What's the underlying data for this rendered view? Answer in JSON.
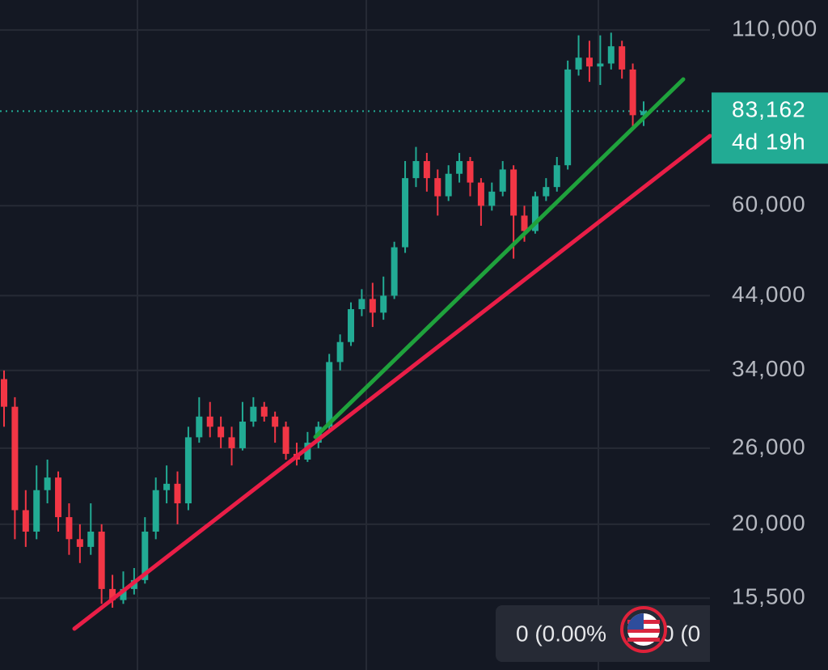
{
  "chart_data": {
    "type": "candlestick",
    "log_scale": true,
    "grid": true,
    "ylim": [
      12100,
      122000
    ],
    "yticks": [
      {
        "value": 110000,
        "label": "110,000"
      },
      {
        "value": 60000,
        "label": "60,000"
      },
      {
        "value": 44000,
        "label": "44,000"
      },
      {
        "value": 34000,
        "label": "34,000"
      },
      {
        "value": 26000,
        "label": "26,000"
      },
      {
        "value": 20000,
        "label": "20,000"
      },
      {
        "value": 15500,
        "label": "15,500"
      }
    ],
    "up_color": "#22ab94",
    "down_color": "#f23645",
    "last_price": {
      "value": 83162,
      "label": "83,162"
    },
    "countdown": "4d 19h",
    "status": [
      "0 (0.00%",
      "0 (0"
    ],
    "ohlc": [
      [
        33000,
        34000,
        28000,
        30000
      ],
      [
        30000,
        31000,
        19000,
        21000
      ],
      [
        21000,
        22500,
        18500,
        19500
      ],
      [
        19500,
        24500,
        19000,
        22500
      ],
      [
        22500,
        25000,
        21500,
        23500
      ],
      [
        23500,
        24000,
        19500,
        20500
      ],
      [
        20500,
        21500,
        18000,
        19000
      ],
      [
        19000,
        20000,
        17500,
        18500
      ],
      [
        18500,
        21500,
        18000,
        19500
      ],
      [
        19500,
        20000,
        15200,
        16000
      ],
      [
        16000,
        16800,
        15000,
        15400
      ],
      [
        15400,
        17000,
        15200,
        16000
      ],
      [
        16000,
        17200,
        15700,
        16500
      ],
      [
        16500,
        20500,
        16300,
        19500
      ],
      [
        19500,
        23500,
        19000,
        22500
      ],
      [
        22500,
        24500,
        21500,
        23000
      ],
      [
        23000,
        24000,
        20000,
        21500
      ],
      [
        21500,
        28000,
        21000,
        27000
      ],
      [
        27000,
        31000,
        26500,
        29000
      ],
      [
        29000,
        30500,
        27000,
        28000
      ],
      [
        28000,
        29000,
        26000,
        27000
      ],
      [
        27000,
        28000,
        24500,
        26000
      ],
      [
        26000,
        30500,
        25800,
        28500
      ],
      [
        28500,
        31000,
        28000,
        30000
      ],
      [
        30000,
        30500,
        28500,
        29000
      ],
      [
        29000,
        29500,
        26500,
        28000
      ],
      [
        28000,
        28500,
        25000,
        25500
      ],
      [
        25500,
        26500,
        24500,
        25000
      ],
      [
        25000,
        27500,
        24800,
        26500
      ],
      [
        26500,
        28500,
        26000,
        28000
      ],
      [
        28000,
        36000,
        27500,
        35000
      ],
      [
        35000,
        38500,
        34000,
        37500
      ],
      [
        37500,
        43000,
        37000,
        42000
      ],
      [
        42000,
        45000,
        41000,
        43500
      ],
      [
        43500,
        46000,
        39500,
        41500
      ],
      [
        41500,
        47000,
        40500,
        44000
      ],
      [
        44000,
        53000,
        43500,
        52000
      ],
      [
        52000,
        70000,
        51000,
        66000
      ],
      [
        66000,
        73500,
        64000,
        70000
      ],
      [
        70000,
        72000,
        63000,
        66000
      ],
      [
        66000,
        68000,
        58000,
        62000
      ],
      [
        62000,
        69000,
        61000,
        67000
      ],
      [
        67000,
        72000,
        65000,
        70000
      ],
      [
        70000,
        71000,
        62000,
        65000
      ],
      [
        65000,
        66000,
        56000,
        60000
      ],
      [
        60000,
        65000,
        59000,
        63000
      ],
      [
        63000,
        70000,
        62000,
        68000
      ],
      [
        68000,
        69000,
        50000,
        58000
      ],
      [
        58000,
        60000,
        53000,
        55000
      ],
      [
        55000,
        63000,
        54500,
        62000
      ],
      [
        62000,
        66000,
        61000,
        64000
      ],
      [
        64000,
        71000,
        63000,
        69000
      ],
      [
        69000,
        99000,
        68000,
        96000
      ],
      [
        96000,
        108000,
        94000,
        100000
      ],
      [
        100000,
        106000,
        92000,
        97000
      ],
      [
        97000,
        108000,
        91000,
        98000
      ],
      [
        98000,
        109000,
        96000,
        104000
      ],
      [
        104000,
        106000,
        93000,
        96000
      ],
      [
        96000,
        98000,
        78000,
        82000
      ],
      [
        82000,
        86000,
        79000,
        83162
      ]
    ]
  }
}
